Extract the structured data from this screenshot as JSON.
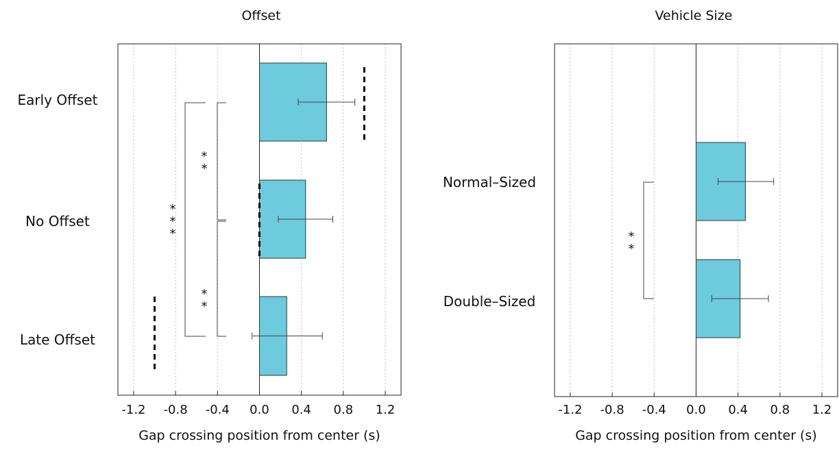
{
  "chart_data": [
    {
      "type": "bar",
      "orientation": "horizontal",
      "title": "Offset",
      "xlabel": "Gap crossing position from center (s)",
      "ylabel": "",
      "categories": [
        "Early Offset",
        "No Offset",
        "Late Offset"
      ],
      "values": [
        0.64,
        0.44,
        0.26
      ],
      "error_low": [
        0.37,
        0.18,
        -0.07
      ],
      "error_high": [
        0.91,
        0.7,
        0.6
      ],
      "xlim": [
        -1.35,
        1.35
      ],
      "xticks": [
        -1.2,
        -0.8,
        -0.4,
        0.0,
        0.4,
        0.8,
        1.2
      ],
      "xtick_labels": [
        "-1.2",
        "-0.8",
        "-0.4",
        "0.0",
        "0.4",
        "0.8",
        "1.2"
      ],
      "grid": "vertical dotted",
      "reference_lines": [
        {
          "category": "Early Offset",
          "x": 1.0
        },
        {
          "category": "No Offset",
          "x": 0.0
        },
        {
          "category": "Late Offset",
          "x": -1.0
        }
      ],
      "significance": [
        {
          "between": [
            "Early Offset",
            "No Offset"
          ],
          "label": "**"
        },
        {
          "between": [
            "No Offset",
            "Late Offset"
          ],
          "label": "**"
        },
        {
          "between": [
            "Early Offset",
            "Late Offset"
          ],
          "label": "***"
        }
      ],
      "colors": {
        "bar": "#6dcbdd",
        "bar_edge": "#333333",
        "axis": "#222222",
        "grid": "#bbbbbb"
      }
    },
    {
      "type": "bar",
      "orientation": "horizontal",
      "title": "Vehicle Size",
      "xlabel": "Gap crossing position from center (s)",
      "ylabel": "",
      "categories": [
        "Normal–Sized",
        "Double–Sized"
      ],
      "values": [
        0.47,
        0.42
      ],
      "error_low": [
        0.21,
        0.15
      ],
      "error_high": [
        0.74,
        0.69
      ],
      "xlim": [
        -1.35,
        1.35
      ],
      "xticks": [
        -1.2,
        -0.8,
        -0.4,
        0.0,
        0.4,
        0.8,
        1.2
      ],
      "xtick_labels": [
        "-1.2",
        "-0.8",
        "-0.4",
        "0.0",
        "0.4",
        "0.8",
        "1.2"
      ],
      "grid": "vertical dotted",
      "significance": [
        {
          "between": [
            "Normal–Sized",
            "Double–Sized"
          ],
          "label": "**"
        }
      ],
      "colors": {
        "bar": "#6dcbdd",
        "bar_edge": "#333333",
        "axis": "#222222",
        "grid": "#bbbbbb"
      }
    }
  ]
}
